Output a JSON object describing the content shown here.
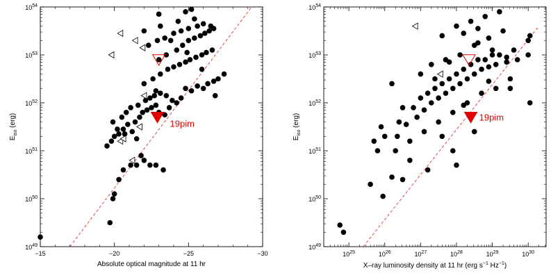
{
  "chart_data": [
    {
      "type": "scatter",
      "xlabel": "Absolute optical magnitude at 11 hr",
      "ylabel": "E_iso (erg)",
      "ylabel_main": "E",
      "ylabel_sub": "iso",
      "ylabel_unit": " (erg)",
      "xlim": [
        -15,
        -30
      ],
      "ylog": [
        49,
        54
      ],
      "xticks": [
        "-15",
        "-20",
        "-25",
        "-30"
      ],
      "ytick_base": "10",
      "ytick_exps": [
        "49",
        "50",
        "51",
        "52",
        "53",
        "54"
      ],
      "fit_line": {
        "x": [
          -17.0,
          -30.0
        ],
        "logy": [
          49.0,
          54.3
        ],
        "color": "#e03030"
      },
      "points_logy": [
        [
          -15.0,
          49.2
        ],
        [
          -19.7,
          49.5
        ],
        [
          -19.9,
          50.0
        ],
        [
          -20.0,
          50.1
        ],
        [
          -20.3,
          50.4
        ],
        [
          -20.6,
          50.6
        ],
        [
          -21.1,
          50.7
        ],
        [
          -21.5,
          50.7
        ],
        [
          -21.8,
          50.9
        ],
        [
          -22.0,
          50.8
        ],
        [
          -22.4,
          50.7
        ],
        [
          -22.8,
          50.7
        ],
        [
          -23.3,
          50.6
        ],
        [
          -19.5,
          51.1
        ],
        [
          -19.8,
          51.2
        ],
        [
          -20.0,
          51.3
        ],
        [
          -20.3,
          51.35
        ],
        [
          -20.6,
          51.45
        ],
        [
          -20.9,
          51.55
        ],
        [
          -21.2,
          51.4
        ],
        [
          -21.4,
          51.6
        ],
        [
          -21.7,
          51.7
        ],
        [
          -21.9,
          51.8
        ],
        [
          -22.2,
          51.85
        ],
        [
          -22.5,
          51.9
        ],
        [
          -22.8,
          51.95
        ],
        [
          -23.0,
          51.8
        ],
        [
          -23.4,
          51.75
        ],
        [
          -23.7,
          51.9
        ],
        [
          -19.9,
          51.6
        ],
        [
          -20.2,
          51.45
        ],
        [
          -20.5,
          51.7
        ],
        [
          -20.8,
          51.8
        ],
        [
          -21.1,
          51.9
        ],
        [
          -21.6,
          51.95
        ],
        [
          -22.1,
          52.05
        ],
        [
          -22.4,
          52.1
        ],
        [
          -22.7,
          52.15
        ],
        [
          -23.1,
          52.2
        ],
        [
          -23.5,
          52.15
        ],
        [
          -23.9,
          52.05
        ],
        [
          -24.2,
          52.0
        ],
        [
          -24.5,
          52.1
        ],
        [
          -24.8,
          52.3
        ],
        [
          -25.2,
          52.25
        ],
        [
          -25.6,
          52.35
        ],
        [
          -26.0,
          52.3
        ],
        [
          -26.3,
          52.4
        ],
        [
          -26.7,
          52.45
        ],
        [
          -27.0,
          52.5
        ],
        [
          -22.0,
          52.4
        ],
        [
          -22.6,
          52.5
        ],
        [
          -23.1,
          52.6
        ],
        [
          -23.6,
          52.7
        ],
        [
          -24.0,
          52.75
        ],
        [
          -24.4,
          52.8
        ],
        [
          -24.8,
          52.85
        ],
        [
          -25.1,
          52.9
        ],
        [
          -25.5,
          52.95
        ],
        [
          -25.9,
          53.0
        ],
        [
          -26.2,
          53.05
        ],
        [
          -26.6,
          53.1
        ],
        [
          -23.0,
          52.9
        ],
        [
          -23.5,
          53.0
        ],
        [
          -24.2,
          53.1
        ],
        [
          -24.6,
          53.2
        ],
        [
          -25.0,
          53.3
        ],
        [
          -25.4,
          53.35
        ],
        [
          -25.8,
          53.4
        ],
        [
          -26.1,
          53.45
        ],
        [
          -26.4,
          53.5
        ],
        [
          -26.7,
          53.55
        ],
        [
          -22.3,
          53.2
        ],
        [
          -22.9,
          53.3
        ],
        [
          -23.4,
          53.35
        ],
        [
          -24.0,
          53.45
        ],
        [
          -24.5,
          53.5
        ],
        [
          -25.0,
          53.55
        ],
        [
          -25.6,
          53.6
        ],
        [
          -26.0,
          53.65
        ],
        [
          -26.5,
          53.6
        ],
        [
          -22.0,
          53.5
        ],
        [
          -23.1,
          53.6
        ],
        [
          -24.3,
          53.7
        ],
        [
          -25.4,
          53.75
        ],
        [
          -23.0,
          53.85
        ],
        [
          -24.8,
          53.9
        ],
        [
          -25.2,
          53.95
        ],
        [
          -23.8,
          53.3
        ],
        [
          -24.9,
          53.05
        ],
        [
          -25.9,
          52.7
        ],
        [
          -26.8,
          52.15
        ],
        [
          -27.4,
          52.6
        ],
        [
          -22.8,
          52.25
        ],
        [
          -21.5,
          51.25
        ],
        [
          -20.7,
          51.35
        ]
      ],
      "open_triangles_logy": [
        [
          -21.9,
          53.15
        ],
        [
          -21.4,
          53.3
        ],
        [
          -20.4,
          53.45
        ],
        [
          -19.8,
          53.0
        ],
        [
          -22.0,
          52.15
        ],
        [
          -21.7,
          51.5
        ],
        [
          -20.4,
          51.2
        ],
        [
          -20.6,
          51.25
        ],
        [
          -21.2,
          50.8
        ]
      ],
      "special": {
        "label": "19pim",
        "filled_logy": [
          -22.9,
          51.7
        ],
        "open_logy": [
          -23.0,
          52.9
        ],
        "color": "#e00000"
      }
    },
    {
      "type": "scatter",
      "xlabel_main": "X–ray luminosity density at 11 hr (erg s",
      "xlabel_exp1": "−1",
      "xlabel_mid": " Hz",
      "xlabel_exp2": "−1",
      "xlabel_end": ")",
      "ylabel": "E_iso (erg)",
      "ylabel_main": "E",
      "ylabel_sub": "iso",
      "ylabel_unit": " (erg)",
      "xlog": [
        24.3,
        30.5
      ],
      "ylog": [
        49,
        54
      ],
      "xtick_base": "10",
      "xtick_exps": [
        "25",
        "26",
        "27",
        "28",
        "29",
        "30"
      ],
      "ytick_base": "10",
      "ytick_exps": [
        "49",
        "50",
        "51",
        "52",
        "53",
        "54"
      ],
      "fit_line": {
        "logx": [
          25.4,
          30.3
        ],
        "logy": [
          49.0,
          53.6
        ],
        "color": "#e03030"
      },
      "points_logxy": [
        [
          24.75,
          49.45
        ],
        [
          24.85,
          49.3
        ],
        [
          25.6,
          50.3
        ],
        [
          26.2,
          50.45
        ],
        [
          25.8,
          51.0
        ],
        [
          26.35,
          51.3
        ],
        [
          26.6,
          51.55
        ],
        [
          26.9,
          51.7
        ],
        [
          27.1,
          51.85
        ],
        [
          27.3,
          52.0
        ],
        [
          27.5,
          52.1
        ],
        [
          27.7,
          52.2
        ],
        [
          27.9,
          52.3
        ],
        [
          28.1,
          52.4
        ],
        [
          28.3,
          52.5
        ],
        [
          28.5,
          52.6
        ],
        [
          28.7,
          52.7
        ],
        [
          28.9,
          52.75
        ],
        [
          29.1,
          52.8
        ],
        [
          29.4,
          52.85
        ],
        [
          29.7,
          52.9
        ],
        [
          30.0,
          53.0
        ],
        [
          26.0,
          51.3
        ],
        [
          26.4,
          51.6
        ],
        [
          26.8,
          51.9
        ],
        [
          27.2,
          52.2
        ],
        [
          27.6,
          52.4
        ],
        [
          28.0,
          52.6
        ],
        [
          28.4,
          52.8
        ],
        [
          28.8,
          52.9
        ],
        [
          29.2,
          53.0
        ],
        [
          29.6,
          53.1
        ],
        [
          30.0,
          53.3
        ],
        [
          26.3,
          51.0
        ],
        [
          26.7,
          51.2
        ],
        [
          27.1,
          51.4
        ],
        [
          27.5,
          51.6
        ],
        [
          27.9,
          51.8
        ],
        [
          28.3,
          52.0
        ],
        [
          28.7,
          52.2
        ],
        [
          29.1,
          52.3
        ],
        [
          29.5,
          52.5
        ],
        [
          25.9,
          51.5
        ],
        [
          26.5,
          51.9
        ],
        [
          27.0,
          52.1
        ],
        [
          27.4,
          52.3
        ],
        [
          27.8,
          52.5
        ],
        [
          28.2,
          52.7
        ],
        [
          28.6,
          52.9
        ],
        [
          29.0,
          53.1
        ],
        [
          27.3,
          52.8
        ],
        [
          27.7,
          52.9
        ],
        [
          28.1,
          53.0
        ],
        [
          28.5,
          53.2
        ],
        [
          28.9,
          53.35
        ],
        [
          29.3,
          53.5
        ],
        [
          28.0,
          53.6
        ],
        [
          28.4,
          53.7
        ],
        [
          28.8,
          53.8
        ],
        [
          29.2,
          53.9
        ],
        [
          27.6,
          53.4
        ],
        [
          28.2,
          53.45
        ],
        [
          28.6,
          53.55
        ],
        [
          26.2,
          52.4
        ],
        [
          27.0,
          52.6
        ],
        [
          25.7,
          51.2
        ],
        [
          30.05,
          53.4
        ],
        [
          30.05,
          52.0
        ],
        [
          29.5,
          52.3
        ],
        [
          28.0,
          50.7
        ],
        [
          27.2,
          50.6
        ],
        [
          26.7,
          50.8
        ],
        [
          27.9,
          51.0
        ],
        [
          28.5,
          51.4
        ],
        [
          27.6,
          51.3
        ],
        [
          26.5,
          50.4
        ],
        [
          25.95,
          50.05
        ],
        [
          28.2,
          51.95
        ],
        [
          27.4,
          52.5
        ],
        [
          28.9,
          52.45
        ],
        [
          29.4,
          52.95
        ],
        [
          27.8,
          52.85
        ],
        [
          28.6,
          53.25
        ],
        [
          29.0,
          53.0
        ]
      ],
      "open_triangles_logxy": [
        [
          26.85,
          53.6
        ],
        [
          27.55,
          52.6
        ]
      ],
      "special": {
        "label": "19pim",
        "filled_logxy": [
          28.4,
          51.7
        ],
        "open_logxy": [
          28.35,
          52.9
        ],
        "color": "#e00000"
      }
    }
  ]
}
